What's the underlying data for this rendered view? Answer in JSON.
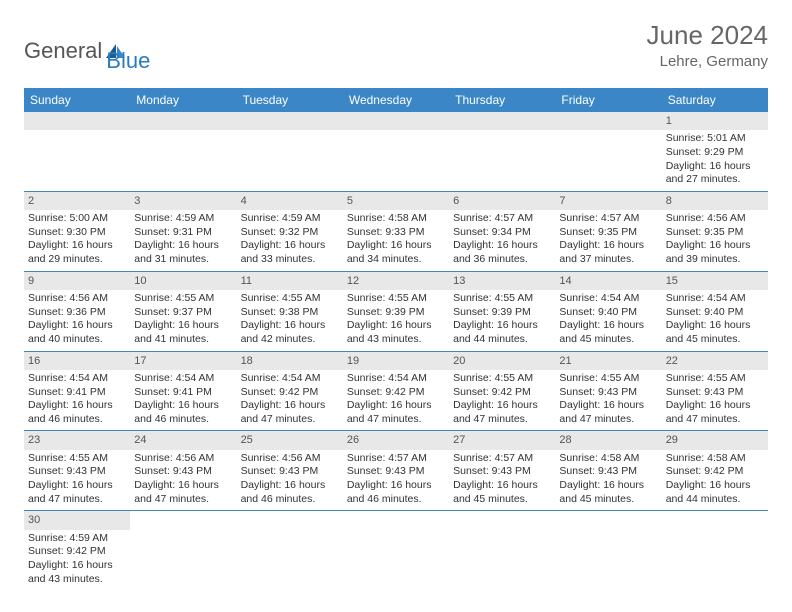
{
  "logo": {
    "textA": "General",
    "textB": "Blue"
  },
  "header": {
    "title": "June 2024",
    "location": "Lehre, Germany"
  },
  "colors": {
    "accent": "#3b86c6",
    "stripe": "#e8e8e8",
    "text": "#333333",
    "header_text": "#666666"
  },
  "daysOfWeek": [
    "Sunday",
    "Monday",
    "Tuesday",
    "Wednesday",
    "Thursday",
    "Friday",
    "Saturday"
  ],
  "weeks": [
    [
      null,
      null,
      null,
      null,
      null,
      null,
      {
        "d": "1",
        "sr": "5:01 AM",
        "ss": "9:29 PM",
        "dl1": "16 hours",
        "dl2": "and 27 minutes."
      }
    ],
    [
      {
        "d": "2",
        "sr": "5:00 AM",
        "ss": "9:30 PM",
        "dl1": "16 hours",
        "dl2": "and 29 minutes."
      },
      {
        "d": "3",
        "sr": "4:59 AM",
        "ss": "9:31 PM",
        "dl1": "16 hours",
        "dl2": "and 31 minutes."
      },
      {
        "d": "4",
        "sr": "4:59 AM",
        "ss": "9:32 PM",
        "dl1": "16 hours",
        "dl2": "and 33 minutes."
      },
      {
        "d": "5",
        "sr": "4:58 AM",
        "ss": "9:33 PM",
        "dl1": "16 hours",
        "dl2": "and 34 minutes."
      },
      {
        "d": "6",
        "sr": "4:57 AM",
        "ss": "9:34 PM",
        "dl1": "16 hours",
        "dl2": "and 36 minutes."
      },
      {
        "d": "7",
        "sr": "4:57 AM",
        "ss": "9:35 PM",
        "dl1": "16 hours",
        "dl2": "and 37 minutes."
      },
      {
        "d": "8",
        "sr": "4:56 AM",
        "ss": "9:35 PM",
        "dl1": "16 hours",
        "dl2": "and 39 minutes."
      }
    ],
    [
      {
        "d": "9",
        "sr": "4:56 AM",
        "ss": "9:36 PM",
        "dl1": "16 hours",
        "dl2": "and 40 minutes."
      },
      {
        "d": "10",
        "sr": "4:55 AM",
        "ss": "9:37 PM",
        "dl1": "16 hours",
        "dl2": "and 41 minutes."
      },
      {
        "d": "11",
        "sr": "4:55 AM",
        "ss": "9:38 PM",
        "dl1": "16 hours",
        "dl2": "and 42 minutes."
      },
      {
        "d": "12",
        "sr": "4:55 AM",
        "ss": "9:39 PM",
        "dl1": "16 hours",
        "dl2": "and 43 minutes."
      },
      {
        "d": "13",
        "sr": "4:55 AM",
        "ss": "9:39 PM",
        "dl1": "16 hours",
        "dl2": "and 44 minutes."
      },
      {
        "d": "14",
        "sr": "4:54 AM",
        "ss": "9:40 PM",
        "dl1": "16 hours",
        "dl2": "and 45 minutes."
      },
      {
        "d": "15",
        "sr": "4:54 AM",
        "ss": "9:40 PM",
        "dl1": "16 hours",
        "dl2": "and 45 minutes."
      }
    ],
    [
      {
        "d": "16",
        "sr": "4:54 AM",
        "ss": "9:41 PM",
        "dl1": "16 hours",
        "dl2": "and 46 minutes."
      },
      {
        "d": "17",
        "sr": "4:54 AM",
        "ss": "9:41 PM",
        "dl1": "16 hours",
        "dl2": "and 46 minutes."
      },
      {
        "d": "18",
        "sr": "4:54 AM",
        "ss": "9:42 PM",
        "dl1": "16 hours",
        "dl2": "and 47 minutes."
      },
      {
        "d": "19",
        "sr": "4:54 AM",
        "ss": "9:42 PM",
        "dl1": "16 hours",
        "dl2": "and 47 minutes."
      },
      {
        "d": "20",
        "sr": "4:55 AM",
        "ss": "9:42 PM",
        "dl1": "16 hours",
        "dl2": "and 47 minutes."
      },
      {
        "d": "21",
        "sr": "4:55 AM",
        "ss": "9:43 PM",
        "dl1": "16 hours",
        "dl2": "and 47 minutes."
      },
      {
        "d": "22",
        "sr": "4:55 AM",
        "ss": "9:43 PM",
        "dl1": "16 hours",
        "dl2": "and 47 minutes."
      }
    ],
    [
      {
        "d": "23",
        "sr": "4:55 AM",
        "ss": "9:43 PM",
        "dl1": "16 hours",
        "dl2": "and 47 minutes."
      },
      {
        "d": "24",
        "sr": "4:56 AM",
        "ss": "9:43 PM",
        "dl1": "16 hours",
        "dl2": "and 47 minutes."
      },
      {
        "d": "25",
        "sr": "4:56 AM",
        "ss": "9:43 PM",
        "dl1": "16 hours",
        "dl2": "and 46 minutes."
      },
      {
        "d": "26",
        "sr": "4:57 AM",
        "ss": "9:43 PM",
        "dl1": "16 hours",
        "dl2": "and 46 minutes."
      },
      {
        "d": "27",
        "sr": "4:57 AM",
        "ss": "9:43 PM",
        "dl1": "16 hours",
        "dl2": "and 45 minutes."
      },
      {
        "d": "28",
        "sr": "4:58 AM",
        "ss": "9:43 PM",
        "dl1": "16 hours",
        "dl2": "and 45 minutes."
      },
      {
        "d": "29",
        "sr": "4:58 AM",
        "ss": "9:42 PM",
        "dl1": "16 hours",
        "dl2": "and 44 minutes."
      }
    ],
    [
      {
        "d": "30",
        "sr": "4:59 AM",
        "ss": "9:42 PM",
        "dl1": "16 hours",
        "dl2": "and 43 minutes."
      },
      null,
      null,
      null,
      null,
      null,
      null
    ]
  ],
  "labels": {
    "sunrise": "Sunrise:",
    "sunset": "Sunset:",
    "daylight": "Daylight:"
  }
}
